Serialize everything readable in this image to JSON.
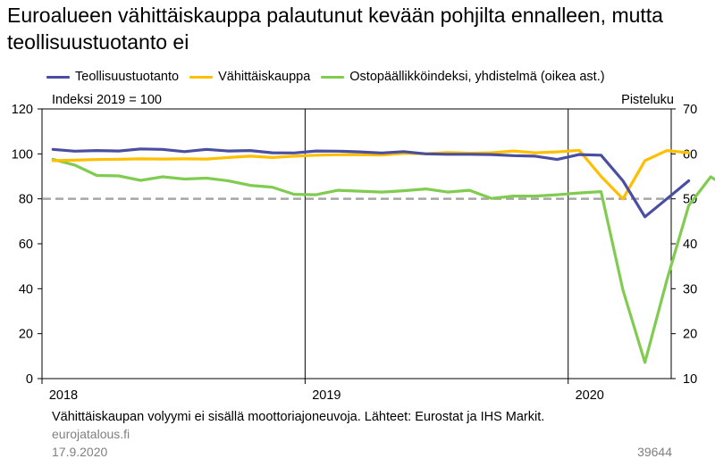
{
  "title": "Euroalueen vähittäiskauppa palautunut kevään pohjilta ennalleen, mutta teollisuustuotanto ei",
  "chart_data": {
    "type": "line",
    "ylabel_left": "Indeksi 2019 = 100",
    "ylabel_right": "Pisteluku",
    "ylim_left": [
      0,
      120
    ],
    "ylim_right": [
      10,
      70
    ],
    "y_ticks_left": [
      "0",
      "20",
      "40",
      "60",
      "80",
      "100",
      "120"
    ],
    "y_ticks_right": [
      "10",
      "20",
      "30",
      "40",
      "50",
      "60",
      "70"
    ],
    "x_ticks": [
      "2018",
      "2019",
      "2020"
    ],
    "reference_line": {
      "axis": "right",
      "value": 50
    },
    "grid": "vertical lines at year boundaries",
    "legend_position": "top",
    "x": [
      "2018-01",
      "2018-02",
      "2018-03",
      "2018-04",
      "2018-05",
      "2018-06",
      "2018-07",
      "2018-08",
      "2018-09",
      "2018-10",
      "2018-11",
      "2018-12",
      "2019-01",
      "2019-02",
      "2019-03",
      "2019-04",
      "2019-05",
      "2019-06",
      "2019-07",
      "2019-08",
      "2019-09",
      "2019-10",
      "2019-11",
      "2019-12",
      "2020-01",
      "2020-02",
      "2020-03",
      "2020-04",
      "2020-05",
      "2020-06",
      "2020-07",
      "2020-08"
    ],
    "series": [
      {
        "name": "Teollisuustuotanto",
        "axis": "left",
        "color": "#4a4ea0",
        "values": [
          102.0,
          101.2,
          101.5,
          101.3,
          102.2,
          102.0,
          101.0,
          102.0,
          101.3,
          101.5,
          100.5,
          100.4,
          101.3,
          101.2,
          100.9,
          100.4,
          101.0,
          100.0,
          99.8,
          99.8,
          99.7,
          99.2,
          99.0,
          97.5,
          99.7,
          99.4,
          88.0,
          72.0,
          80.0,
          88.0,
          null,
          null
        ]
      },
      {
        "name": "Vähittäiskauppa",
        "axis": "left",
        "color": "#ffbf00",
        "values": [
          97.0,
          97.2,
          97.5,
          97.6,
          97.8,
          97.7,
          97.8,
          97.7,
          98.4,
          99.0,
          98.4,
          99.0,
          99.4,
          99.6,
          99.6,
          99.5,
          100.3,
          100.1,
          100.6,
          100.3,
          100.5,
          101.3,
          100.5,
          100.9,
          101.6,
          90.0,
          80.0,
          97.0,
          101.5,
          100.5,
          null,
          null
        ]
      },
      {
        "name": "Ostopäällikköindeksi, yhdistelmä (oikea ast.)",
        "axis": "right",
        "color": "#80cc50",
        "values": [
          58.8,
          57.5,
          55.2,
          55.1,
          54.1,
          54.9,
          54.4,
          54.6,
          54.0,
          53.0,
          52.6,
          51.0,
          50.9,
          51.9,
          51.7,
          51.5,
          51.8,
          52.2,
          51.5,
          51.9,
          50.1,
          50.6,
          50.6,
          50.9,
          51.3,
          51.6,
          29.7,
          13.6,
          31.9,
          48.5,
          54.9,
          51.9
        ]
      }
    ]
  },
  "footnote": "Vähittäiskaupan volyymi ei sisällä moottoriajoneuvoja.  Lähteet: Eurostat ja IHS Markit.",
  "source": "eurojatalous.fi",
  "date": "17.9.2020",
  "code": "39644"
}
